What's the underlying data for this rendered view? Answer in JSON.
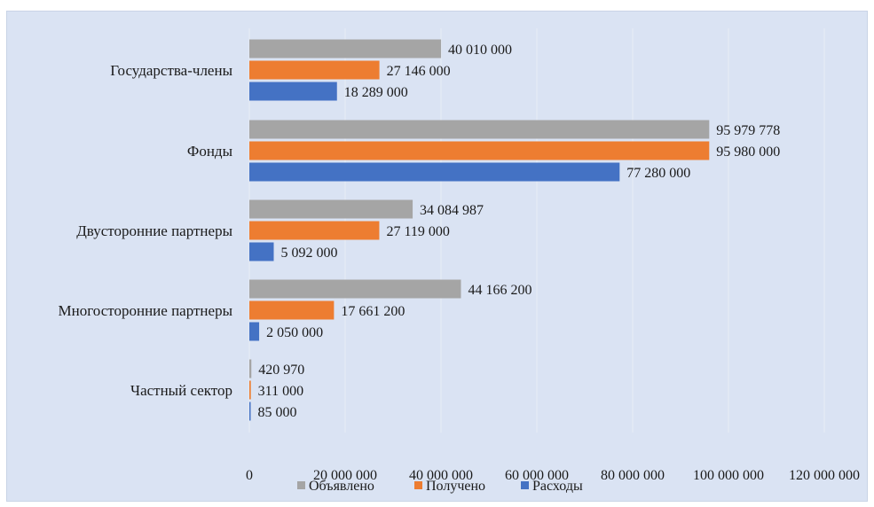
{
  "chart_data": {
    "type": "bar",
    "orientation": "horizontal",
    "title": "",
    "xlabel": "",
    "ylabel": "",
    "categories": [
      "Государства-члены",
      "Фонды",
      "Двусторонние партнеры",
      "Многосторонние партнеры",
      "Частный сектор"
    ],
    "series": [
      {
        "name": "Объявлено",
        "color": "#a5a5a5",
        "values": [
          40010000,
          95979778,
          34084987,
          44166200,
          420970
        ],
        "labels": [
          "40 010 000",
          "95 979 778",
          "34 084 987",
          "44 166 200",
          "420 970"
        ]
      },
      {
        "name": "Получено",
        "color": "#ed7d31",
        "values": [
          27146000,
          95980000,
          27119000,
          17661200,
          311000
        ],
        "labels": [
          "27 146 000",
          "95 980 000",
          "27 119 000",
          "17 661 200",
          "311 000"
        ]
      },
      {
        "name": "Расходы",
        "color": "#4472c4",
        "values": [
          18289000,
          77280000,
          5092000,
          2050000,
          85000
        ],
        "labels": [
          "18 289 000",
          "77 280 000",
          "5 092 000",
          "2 050 000",
          "85 000"
        ]
      }
    ],
    "xlim": [
      0,
      120000000
    ],
    "x_ticks": [
      0,
      20000000,
      40000000,
      60000000,
      80000000,
      100000000,
      120000000
    ],
    "x_tick_labels": [
      "0",
      "20 000 000",
      "40 000 000",
      "60 000 000",
      "80 000 000",
      "100 000 000",
      "120 000 000"
    ],
    "grid": "vertical",
    "legend_position": "bottom",
    "background": "#dae3f3"
  }
}
